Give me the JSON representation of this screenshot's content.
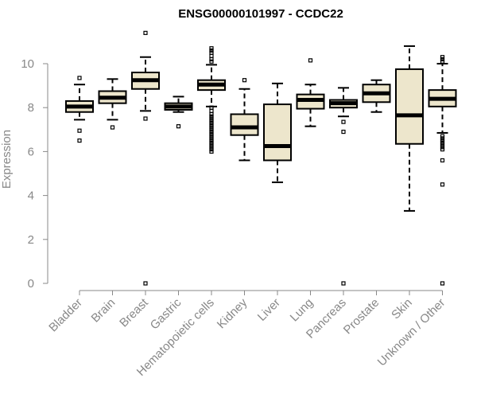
{
  "chart_data": {
    "type": "boxplot",
    "title": "ENSG00000101997 - CCDC22",
    "xlabel": "",
    "ylabel": "Expression",
    "ylim": [
      0,
      11.5
    ],
    "yticks": [
      0,
      2,
      4,
      6,
      8,
      10
    ],
    "box_fill": "#EDE6CC",
    "categories": [
      "Bladder",
      "Brain",
      "Breast",
      "Gastric",
      "Hematopoietic cells",
      "Kidney",
      "Liver",
      "Lung",
      "Pancreas",
      "Prostate",
      "Skin",
      "Unknown / Other"
    ],
    "boxes": [
      {
        "name": "Bladder",
        "whislo": 7.45,
        "q1": 7.8,
        "med": 8.05,
        "q3": 8.3,
        "whishi": 9.05,
        "fliers": [
          9.35,
          6.95,
          6.5
        ]
      },
      {
        "name": "Brain",
        "whislo": 7.45,
        "q1": 8.2,
        "med": 8.45,
        "q3": 8.75,
        "whishi": 9.3,
        "fliers": [
          7.1
        ]
      },
      {
        "name": "Breast",
        "whislo": 7.85,
        "q1": 8.85,
        "med": 9.25,
        "q3": 9.6,
        "whishi": 10.3,
        "fliers": [
          11.4,
          7.5,
          0.0
        ]
      },
      {
        "name": "Gastric",
        "whislo": 7.8,
        "q1": 7.9,
        "med": 8.05,
        "q3": 8.2,
        "whishi": 8.5,
        "fliers": [
          7.15
        ]
      },
      {
        "name": "Hematopoietic cells",
        "whislo": 8.05,
        "q1": 8.8,
        "med": 9.05,
        "q3": 9.25,
        "whishi": 9.95,
        "fliers": [
          10.7,
          10.6,
          10.5,
          10.35,
          10.2,
          10.1,
          8.0,
          7.85,
          7.7,
          7.6,
          7.5,
          7.4,
          7.3,
          7.2,
          7.1,
          7.0,
          6.9,
          6.8,
          6.7,
          6.6,
          6.5,
          6.4,
          6.3,
          6.2,
          6.1,
          6.0
        ]
      },
      {
        "name": "Kidney",
        "whislo": 5.6,
        "q1": 6.75,
        "med": 7.1,
        "q3": 7.7,
        "whishi": 8.85,
        "fliers": [
          9.25
        ]
      },
      {
        "name": "Liver",
        "whislo": 4.6,
        "q1": 5.6,
        "med": 6.25,
        "q3": 8.15,
        "whishi": 9.1,
        "fliers": []
      },
      {
        "name": "Lung",
        "whislo": 7.15,
        "q1": 7.95,
        "med": 8.35,
        "q3": 8.6,
        "whishi": 9.05,
        "fliers": [
          10.15
        ]
      },
      {
        "name": "Pancreas",
        "whislo": 7.6,
        "q1": 8.0,
        "med": 8.2,
        "q3": 8.35,
        "whishi": 8.9,
        "fliers": [
          7.35,
          6.9,
          0.0
        ]
      },
      {
        "name": "Prostate",
        "whislo": 7.8,
        "q1": 8.25,
        "med": 8.65,
        "q3": 9.05,
        "whishi": 9.25,
        "fliers": []
      },
      {
        "name": "Skin",
        "whislo": 3.3,
        "q1": 6.35,
        "med": 7.65,
        "q3": 9.75,
        "whishi": 10.8,
        "fliers": []
      },
      {
        "name": "Unknown / Other",
        "whislo": 6.85,
        "q1": 8.05,
        "med": 8.4,
        "q3": 8.8,
        "whishi": 10.0,
        "fliers": [
          10.3,
          10.2,
          10.1,
          6.7,
          6.6,
          6.5,
          6.4,
          6.3,
          6.2,
          6.1,
          5.6,
          4.5,
          0.0
        ]
      }
    ]
  }
}
